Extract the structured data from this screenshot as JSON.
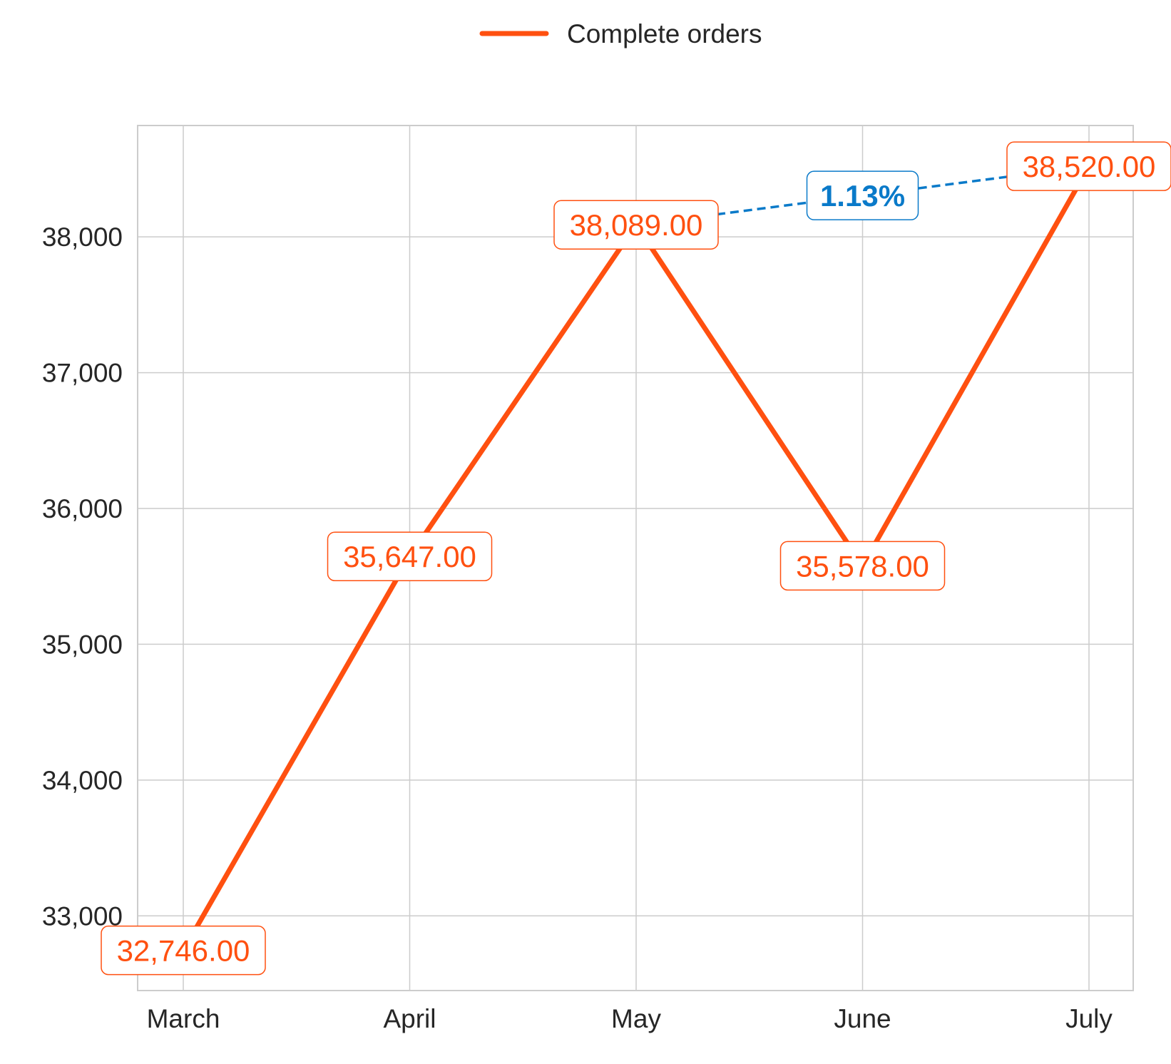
{
  "chart_data": {
    "type": "line",
    "categories": [
      "March",
      "April",
      "May",
      "June",
      "July"
    ],
    "series": [
      {
        "name": "Complete orders",
        "values": [
          32746,
          35647,
          38089,
          35578,
          38520
        ],
        "labels": [
          "32,746.00",
          "35,647.00",
          "38,089.00",
          "35,578.00",
          "38,520.00"
        ],
        "color": "#FF5010"
      }
    ],
    "annotation": {
      "text": "1.13%",
      "from_category": "May",
      "to_category": "July",
      "color": "#0A7AC9",
      "line_style": "dashed"
    },
    "y_ticks": [
      33000,
      34000,
      35000,
      36000,
      37000,
      38000
    ],
    "y_tick_labels": [
      "33,000",
      "34,000",
      "35,000",
      "36,000",
      "37,000",
      "38,000"
    ],
    "ylim": [
      32450,
      38820
    ],
    "grid": true,
    "legend_position": "top-center",
    "colors": {
      "grid": "#cccccc",
      "axes": "#cccccc",
      "text": "#262626"
    }
  }
}
